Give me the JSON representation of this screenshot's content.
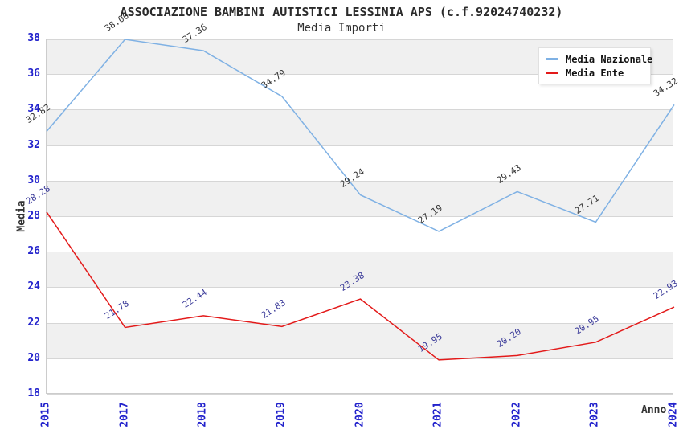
{
  "chart_data": {
    "type": "line",
    "title": "ASSOCIAZIONE BAMBINI AUTISTICI LESSINIA APS (c.f.92024740232)",
    "subtitle": "Media Importi",
    "xlabel": "Anno",
    "ylabel": "Media",
    "categories": [
      "2015",
      "2017",
      "2018",
      "2019",
      "2020",
      "2021",
      "2022",
      "2023",
      "2024"
    ],
    "series": [
      {
        "name": "Media Nazionale",
        "color": "#7FB1E4",
        "label_color": "#333333",
        "values": [
          32.82,
          38.0,
          37.36,
          34.79,
          29.24,
          27.19,
          29.43,
          27.71,
          34.32
        ]
      },
      {
        "name": "Media Ente",
        "color": "#E31A1A",
        "label_color": "#3A3A99",
        "values": [
          28.28,
          21.78,
          22.44,
          21.83,
          23.38,
          19.95,
          20.2,
          20.95,
          22.93
        ]
      }
    ],
    "ylim": [
      18,
      38
    ],
    "yticks": [
      18,
      20,
      22,
      24,
      26,
      28,
      30,
      32,
      34,
      36,
      38
    ],
    "grid": true,
    "band_color": "#F0F0F0",
    "grid_color": "#D6D6D6",
    "tick_label_color": "#2222CC",
    "legend_position": "top-right"
  }
}
